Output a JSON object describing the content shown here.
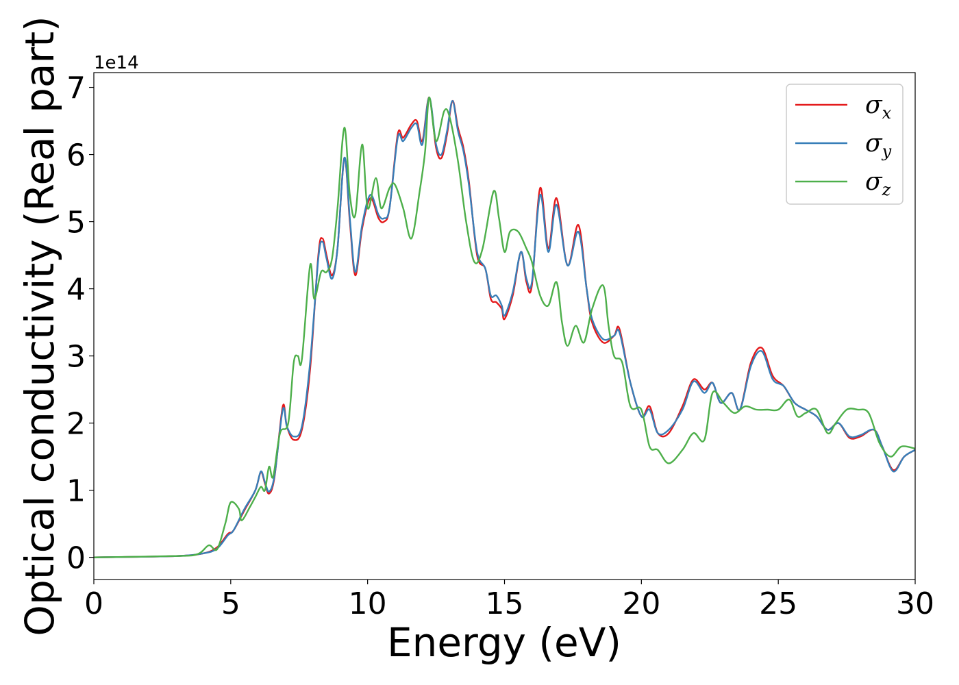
{
  "chart_data": {
    "type": "line",
    "title": "",
    "xlabel": "Energy (eV)",
    "ylabel": "Optical conductivity (Real part)",
    "y_scale_note": "1e14",
    "xlim": [
      0,
      30
    ],
    "ylim": [
      -0.33,
      7.22
    ],
    "x_ticks": [
      0,
      5,
      10,
      15,
      20,
      25,
      30
    ],
    "y_ticks": [
      0,
      1,
      2,
      3,
      4,
      5,
      6,
      7
    ],
    "grid": false,
    "legend_position": "top-right",
    "series": [
      {
        "name": "σx",
        "symbol": "σ",
        "subscript": "x",
        "color": "#e41a1c",
        "points": [
          [
            0,
            0
          ],
          [
            3,
            0.02
          ],
          [
            4,
            0.06
          ],
          [
            4.5,
            0.15
          ],
          [
            4.9,
            0.35
          ],
          [
            5.1,
            0.4
          ],
          [
            5.5,
            0.7
          ],
          [
            5.9,
            1.0
          ],
          [
            6.1,
            1.27
          ],
          [
            6.25,
            1.1
          ],
          [
            6.4,
            0.95
          ],
          [
            6.6,
            1.2
          ],
          [
            6.9,
            2.25
          ],
          [
            7.05,
            1.95
          ],
          [
            7.3,
            1.75
          ],
          [
            7.6,
            1.9
          ],
          [
            7.9,
            2.8
          ],
          [
            8.2,
            4.5
          ],
          [
            8.35,
            4.75
          ],
          [
            8.5,
            4.5
          ],
          [
            8.7,
            4.2
          ],
          [
            8.9,
            4.6
          ],
          [
            9.15,
            5.95
          ],
          [
            9.35,
            5.0
          ],
          [
            9.55,
            4.2
          ],
          [
            9.8,
            4.9
          ],
          [
            10.1,
            5.35
          ],
          [
            10.4,
            5.05
          ],
          [
            10.6,
            5.0
          ],
          [
            10.8,
            5.2
          ],
          [
            11.1,
            6.3
          ],
          [
            11.3,
            6.25
          ],
          [
            11.6,
            6.45
          ],
          [
            11.8,
            6.5
          ],
          [
            12.0,
            6.2
          ],
          [
            12.25,
            6.85
          ],
          [
            12.5,
            6.1
          ],
          [
            12.7,
            5.95
          ],
          [
            12.9,
            6.3
          ],
          [
            13.1,
            6.8
          ],
          [
            13.3,
            6.4
          ],
          [
            13.5,
            6.1
          ],
          [
            13.7,
            5.6
          ],
          [
            14.0,
            4.5
          ],
          [
            14.3,
            4.3
          ],
          [
            14.5,
            3.85
          ],
          [
            14.7,
            3.8
          ],
          [
            14.9,
            3.7
          ],
          [
            15.0,
            3.55
          ],
          [
            15.3,
            3.9
          ],
          [
            15.6,
            4.55
          ],
          [
            15.8,
            4.1
          ],
          [
            16.0,
            4.05
          ],
          [
            16.3,
            5.5
          ],
          [
            16.6,
            4.6
          ],
          [
            16.9,
            5.35
          ],
          [
            17.3,
            4.35
          ],
          [
            17.7,
            4.95
          ],
          [
            18.0,
            4.0
          ],
          [
            18.2,
            3.5
          ],
          [
            18.6,
            3.2
          ],
          [
            19.0,
            3.3
          ],
          [
            19.2,
            3.4
          ],
          [
            19.6,
            2.6
          ],
          [
            20.0,
            2.1
          ],
          [
            20.3,
            2.25
          ],
          [
            20.6,
            1.85
          ],
          [
            21.0,
            1.85
          ],
          [
            21.5,
            2.25
          ],
          [
            21.9,
            2.65
          ],
          [
            22.3,
            2.5
          ],
          [
            22.6,
            2.6
          ],
          [
            22.9,
            2.3
          ],
          [
            23.3,
            2.45
          ],
          [
            23.6,
            2.2
          ],
          [
            24.0,
            2.9
          ],
          [
            24.4,
            3.12
          ],
          [
            24.8,
            2.7
          ],
          [
            25.2,
            2.55
          ],
          [
            25.6,
            2.3
          ],
          [
            26.0,
            2.2
          ],
          [
            26.4,
            2.1
          ],
          [
            26.8,
            1.9
          ],
          [
            27.2,
            2.0
          ],
          [
            27.6,
            1.78
          ],
          [
            28.0,
            1.8
          ],
          [
            28.5,
            1.9
          ],
          [
            28.8,
            1.65
          ],
          [
            29.2,
            1.3
          ],
          [
            29.6,
            1.5
          ],
          [
            30.0,
            1.6
          ]
        ]
      },
      {
        "name": "σy",
        "symbol": "σ",
        "subscript": "y",
        "color": "#377eb8",
        "points": [
          [
            0,
            0
          ],
          [
            3,
            0.02
          ],
          [
            4,
            0.06
          ],
          [
            4.5,
            0.13
          ],
          [
            4.9,
            0.33
          ],
          [
            5.1,
            0.4
          ],
          [
            5.5,
            0.72
          ],
          [
            5.9,
            1.0
          ],
          [
            6.1,
            1.28
          ],
          [
            6.25,
            1.12
          ],
          [
            6.4,
            0.98
          ],
          [
            6.6,
            1.22
          ],
          [
            6.9,
            2.2
          ],
          [
            7.05,
            1.95
          ],
          [
            7.3,
            1.8
          ],
          [
            7.6,
            1.95
          ],
          [
            7.9,
            2.9
          ],
          [
            8.2,
            4.45
          ],
          [
            8.35,
            4.7
          ],
          [
            8.5,
            4.45
          ],
          [
            8.7,
            4.15
          ],
          [
            8.9,
            4.6
          ],
          [
            9.15,
            5.95
          ],
          [
            9.35,
            5.05
          ],
          [
            9.55,
            4.25
          ],
          [
            9.8,
            4.95
          ],
          [
            10.1,
            5.4
          ],
          [
            10.4,
            5.1
          ],
          [
            10.6,
            5.05
          ],
          [
            10.8,
            5.2
          ],
          [
            11.1,
            6.25
          ],
          [
            11.3,
            6.2
          ],
          [
            11.6,
            6.4
          ],
          [
            11.8,
            6.45
          ],
          [
            12.0,
            6.15
          ],
          [
            12.25,
            6.85
          ],
          [
            12.5,
            6.15
          ],
          [
            12.7,
            6.0
          ],
          [
            12.9,
            6.35
          ],
          [
            13.1,
            6.8
          ],
          [
            13.3,
            6.35
          ],
          [
            13.5,
            6.05
          ],
          [
            13.7,
            5.55
          ],
          [
            14.0,
            4.55
          ],
          [
            14.3,
            4.3
          ],
          [
            14.5,
            3.9
          ],
          [
            14.7,
            3.9
          ],
          [
            14.9,
            3.75
          ],
          [
            15.0,
            3.6
          ],
          [
            15.3,
            3.95
          ],
          [
            15.6,
            4.55
          ],
          [
            15.8,
            4.15
          ],
          [
            16.0,
            4.1
          ],
          [
            16.3,
            5.4
          ],
          [
            16.6,
            4.55
          ],
          [
            16.9,
            5.25
          ],
          [
            17.3,
            4.35
          ],
          [
            17.7,
            4.85
          ],
          [
            18.0,
            4.0
          ],
          [
            18.2,
            3.55
          ],
          [
            18.6,
            3.25
          ],
          [
            19.0,
            3.3
          ],
          [
            19.2,
            3.35
          ],
          [
            19.6,
            2.6
          ],
          [
            20.0,
            2.1
          ],
          [
            20.3,
            2.2
          ],
          [
            20.6,
            1.85
          ],
          [
            21.0,
            1.9
          ],
          [
            21.5,
            2.2
          ],
          [
            21.9,
            2.62
          ],
          [
            22.3,
            2.45
          ],
          [
            22.6,
            2.6
          ],
          [
            22.9,
            2.3
          ],
          [
            23.3,
            2.45
          ],
          [
            23.6,
            2.2
          ],
          [
            24.0,
            2.85
          ],
          [
            24.4,
            3.07
          ],
          [
            24.8,
            2.65
          ],
          [
            25.2,
            2.55
          ],
          [
            25.6,
            2.3
          ],
          [
            26.0,
            2.2
          ],
          [
            26.4,
            2.1
          ],
          [
            26.8,
            1.9
          ],
          [
            27.2,
            2.0
          ],
          [
            27.6,
            1.8
          ],
          [
            28.0,
            1.82
          ],
          [
            28.5,
            1.9
          ],
          [
            28.8,
            1.65
          ],
          [
            29.2,
            1.28
          ],
          [
            29.6,
            1.5
          ],
          [
            30.0,
            1.6
          ]
        ]
      },
      {
        "name": "σz",
        "symbol": "σ",
        "subscript": "z",
        "color": "#4daf4a",
        "points": [
          [
            0,
            0
          ],
          [
            3,
            0.02
          ],
          [
            3.8,
            0.05
          ],
          [
            4.2,
            0.18
          ],
          [
            4.5,
            0.12
          ],
          [
            4.8,
            0.5
          ],
          [
            5.0,
            0.82
          ],
          [
            5.3,
            0.72
          ],
          [
            5.4,
            0.55
          ],
          [
            5.7,
            0.75
          ],
          [
            5.9,
            0.9
          ],
          [
            6.1,
            1.05
          ],
          [
            6.25,
            1.0
          ],
          [
            6.4,
            1.35
          ],
          [
            6.55,
            1.2
          ],
          [
            6.8,
            1.85
          ],
          [
            7.1,
            2.0
          ],
          [
            7.3,
            2.9
          ],
          [
            7.45,
            3.0
          ],
          [
            7.6,
            2.95
          ],
          [
            7.9,
            4.35
          ],
          [
            8.05,
            3.85
          ],
          [
            8.3,
            4.25
          ],
          [
            8.5,
            4.25
          ],
          [
            8.7,
            4.45
          ],
          [
            8.9,
            5.2
          ],
          [
            9.15,
            6.4
          ],
          [
            9.35,
            5.4
          ],
          [
            9.55,
            5.1
          ],
          [
            9.8,
            6.15
          ],
          [
            10.0,
            5.2
          ],
          [
            10.3,
            5.65
          ],
          [
            10.5,
            5.2
          ],
          [
            10.8,
            5.5
          ],
          [
            11.0,
            5.55
          ],
          [
            11.3,
            5.2
          ],
          [
            11.6,
            4.75
          ],
          [
            11.9,
            5.45
          ],
          [
            12.1,
            6.05
          ],
          [
            12.25,
            6.85
          ],
          [
            12.5,
            6.2
          ],
          [
            12.8,
            6.65
          ],
          [
            13.0,
            6.55
          ],
          [
            13.3,
            5.9
          ],
          [
            13.6,
            5.0
          ],
          [
            13.9,
            4.4
          ],
          [
            14.2,
            4.6
          ],
          [
            14.6,
            5.45
          ],
          [
            14.8,
            5.05
          ],
          [
            15.0,
            4.55
          ],
          [
            15.2,
            4.85
          ],
          [
            15.5,
            4.85
          ],
          [
            15.8,
            4.6
          ],
          [
            16.0,
            4.4
          ],
          [
            16.3,
            3.9
          ],
          [
            16.6,
            3.75
          ],
          [
            16.9,
            4.1
          ],
          [
            17.1,
            3.5
          ],
          [
            17.3,
            3.15
          ],
          [
            17.6,
            3.45
          ],
          [
            17.9,
            3.2
          ],
          [
            18.2,
            3.7
          ],
          [
            18.6,
            4.05
          ],
          [
            18.8,
            3.45
          ],
          [
            19.0,
            3.0
          ],
          [
            19.3,
            2.9
          ],
          [
            19.6,
            2.25
          ],
          [
            20.0,
            2.2
          ],
          [
            20.3,
            1.65
          ],
          [
            20.6,
            1.6
          ],
          [
            21.0,
            1.4
          ],
          [
            21.5,
            1.6
          ],
          [
            21.9,
            1.85
          ],
          [
            22.3,
            1.75
          ],
          [
            22.6,
            2.45
          ],
          [
            23.0,
            2.3
          ],
          [
            23.4,
            2.15
          ],
          [
            23.8,
            2.25
          ],
          [
            24.2,
            2.2
          ],
          [
            24.6,
            2.2
          ],
          [
            25.0,
            2.2
          ],
          [
            25.4,
            2.35
          ],
          [
            25.7,
            2.1
          ],
          [
            26.0,
            2.15
          ],
          [
            26.4,
            2.2
          ],
          [
            26.8,
            1.85
          ],
          [
            27.1,
            2.0
          ],
          [
            27.5,
            2.2
          ],
          [
            27.9,
            2.2
          ],
          [
            28.3,
            2.15
          ],
          [
            28.7,
            1.7
          ],
          [
            29.1,
            1.5
          ],
          [
            29.5,
            1.65
          ],
          [
            30.0,
            1.62
          ]
        ]
      }
    ]
  }
}
